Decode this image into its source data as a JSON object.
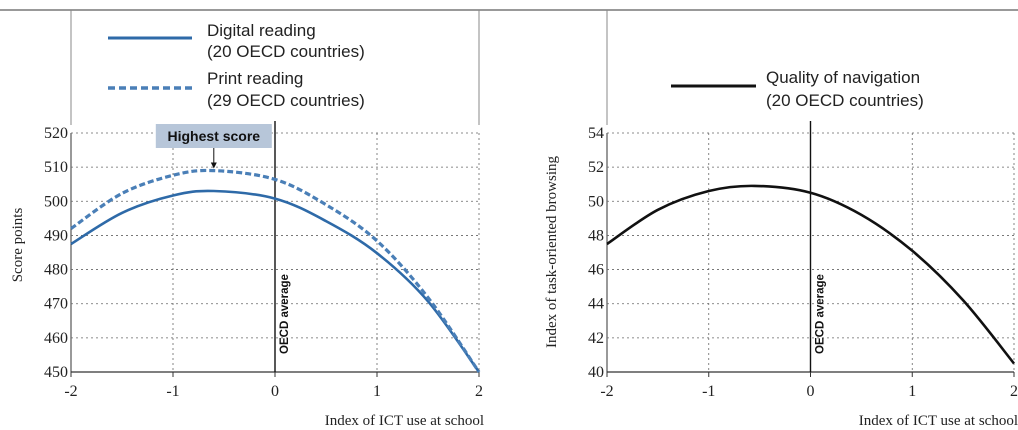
{
  "colors": {
    "digital": "#2e6aa8",
    "print": "#4a7fb7",
    "navigation": "#111111",
    "grid": "#666666",
    "highlight_box": "#b7c6d9"
  },
  "chart_data": [
    {
      "type": "line",
      "xlabel": "Index of ICT use at school",
      "ylabel": "Score points",
      "xlim": [
        -2,
        2
      ],
      "ylim": [
        450,
        520
      ],
      "x_ticks": [
        "-2",
        "-1",
        "0",
        "1",
        "2"
      ],
      "y_ticks": [
        "450",
        "460",
        "470",
        "480",
        "490",
        "500",
        "510",
        "520"
      ],
      "grid": true,
      "legend_position": "top",
      "reference_line": {
        "x": 0,
        "label": "OECD average"
      },
      "annotation": {
        "label": "Highest score",
        "x": -0.6,
        "y": 509
      },
      "series": [
        {
          "name": "Digital reading",
          "legend_note": "(20 OECD countries)",
          "style": "solid",
          "x": [
            -2,
            -1.5,
            -1,
            -0.6,
            0,
            0.5,
            1,
            1.5,
            2
          ],
          "y": [
            487.5,
            496.6,
            501.7,
            503.0,
            500.8,
            494.2,
            484.8,
            470.7,
            450.0
          ]
        },
        {
          "name": "Print reading",
          "legend_note": "(29 OECD countries)",
          "style": "dashed",
          "x": [
            -2,
            -1.5,
            -1,
            -0.6,
            0,
            0.5,
            1,
            1.5,
            2
          ],
          "y": [
            492.0,
            502.3,
            507.6,
            509.0,
            506.4,
            499.0,
            488.4,
            471.8,
            450.0
          ]
        }
      ]
    },
    {
      "type": "line",
      "xlabel": "Index of ICT use at school",
      "ylabel": "Index of task-oriented browsing",
      "xlim": [
        -2,
        2
      ],
      "ylim": [
        40,
        54
      ],
      "x_ticks": [
        "-2",
        "-1",
        "0",
        "1",
        "2"
      ],
      "y_ticks": [
        "40",
        "42",
        "44",
        "46",
        "48",
        "50",
        "52",
        "54"
      ],
      "grid": true,
      "legend_position": "top",
      "reference_line": {
        "x": 0,
        "label": "OECD average"
      },
      "series": [
        {
          "name": "Quality of navigation",
          "legend_note": "(20 OECD countries)",
          "style": "solid",
          "x": [
            -2,
            -1.5,
            -1,
            -0.55,
            0,
            0.5,
            1,
            1.5,
            2
          ],
          "y": [
            47.5,
            49.5,
            50.6,
            50.9,
            50.5,
            49.2,
            47.1,
            44.2,
            40.5
          ]
        }
      ]
    }
  ]
}
